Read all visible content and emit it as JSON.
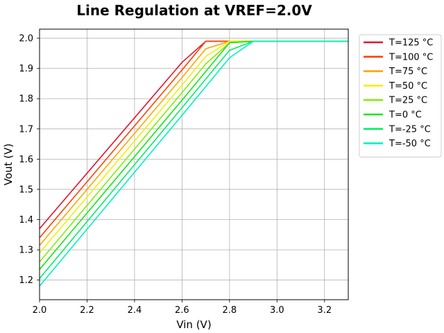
{
  "chart_data": {
    "type": "line",
    "title": "Line Regulation at VREF=2.0V",
    "xlabel": "Vin (V)",
    "ylabel": "Vout (V)",
    "xlim": [
      2.0,
      3.3
    ],
    "ylim": [
      1.135,
      2.03
    ],
    "xticks": [
      2.0,
      2.2,
      2.4,
      2.6,
      2.8,
      3.0,
      3.2
    ],
    "xtick_labels": [
      "2.0",
      "2.2",
      "2.4",
      "2.6",
      "2.8",
      "3.0",
      "3.2"
    ],
    "yticks": [
      1.2,
      1.3,
      1.4,
      1.5,
      1.6,
      1.7,
      1.8,
      1.9,
      2.0
    ],
    "ytick_labels": [
      "1.2",
      "1.3",
      "1.4",
      "1.5",
      "1.6",
      "1.7",
      "1.8",
      "1.9",
      "2.0"
    ],
    "grid": true,
    "legend_position": "outside-top-right",
    "series": [
      {
        "name": "T=125 °C",
        "color": "#e8102a",
        "x": [
          2.0,
          2.6,
          2.7,
          2.8,
          2.9,
          3.3
        ],
        "y": [
          1.37,
          1.92,
          1.99,
          1.99,
          1.99,
          1.99
        ]
      },
      {
        "name": "T=100 °C",
        "color": "#ff4000",
        "x": [
          2.0,
          2.6,
          2.7,
          2.8,
          2.9,
          3.3
        ],
        "y": [
          1.34,
          1.895,
          1.99,
          1.99,
          1.99,
          1.99
        ]
      },
      {
        "name": "T=75 °C",
        "color": "#ffa500",
        "x": [
          2.0,
          2.6,
          2.7,
          2.8,
          2.9,
          3.3
        ],
        "y": [
          1.315,
          1.87,
          1.965,
          1.99,
          1.99,
          1.99
        ]
      },
      {
        "name": "T=50 °C",
        "color": "#f0f000",
        "x": [
          2.0,
          2.6,
          2.7,
          2.8,
          2.9,
          3.3
        ],
        "y": [
          1.29,
          1.845,
          1.94,
          1.99,
          1.99,
          1.99
        ]
      },
      {
        "name": "T=25 °C",
        "color": "#80f000",
        "x": [
          2.0,
          2.6,
          2.7,
          2.8,
          2.9,
          3.3
        ],
        "y": [
          1.26,
          1.82,
          1.915,
          1.985,
          1.99,
          1.99
        ]
      },
      {
        "name": "T=0 °C",
        "color": "#10e810",
        "x": [
          2.0,
          2.6,
          2.7,
          2.8,
          2.9,
          3.3
        ],
        "y": [
          1.235,
          1.795,
          1.89,
          1.985,
          1.99,
          1.99
        ]
      },
      {
        "name": "T=-25 °C",
        "color": "#00f060",
        "x": [
          2.0,
          2.6,
          2.7,
          2.8,
          2.9,
          3.3
        ],
        "y": [
          1.205,
          1.77,
          1.865,
          1.96,
          1.99,
          1.99
        ]
      },
      {
        "name": "T=-50 °C",
        "color": "#00f0c0",
        "x": [
          2.0,
          2.6,
          2.7,
          2.8,
          2.9,
          3.3
        ],
        "y": [
          1.18,
          1.745,
          1.84,
          1.935,
          1.99,
          1.99
        ]
      }
    ]
  }
}
